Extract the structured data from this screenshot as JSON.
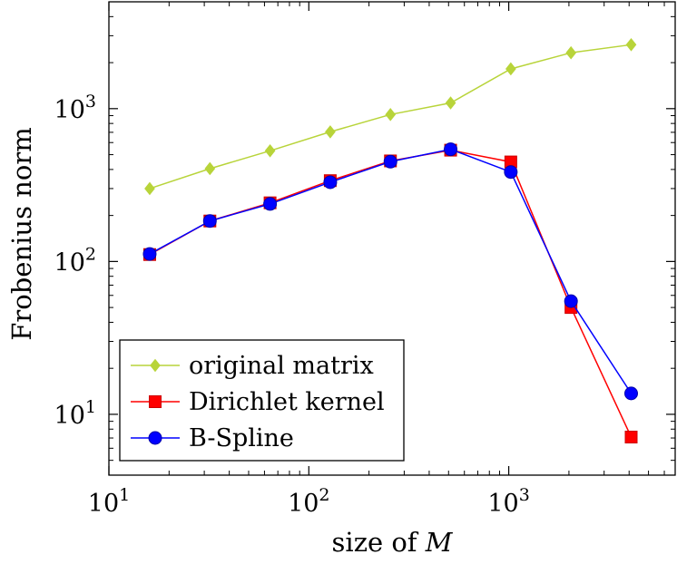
{
  "chart_data": {
    "type": "line",
    "xlabel_prefix": "size of ",
    "xlabel_var": "M",
    "ylabel": "Frobenius norm",
    "x_scale": "log",
    "y_scale": "log",
    "xlim": [
      10,
      6800
    ],
    "ylim": [
      4,
      5000
    ],
    "grid": false,
    "legend_position": "bottom-left",
    "x_ticks": [
      {
        "value": 10,
        "base": "10",
        "exp": "1"
      },
      {
        "value": 100,
        "base": "10",
        "exp": "2"
      },
      {
        "value": 1000,
        "base": "10",
        "exp": "3"
      }
    ],
    "y_ticks": [
      {
        "value": 10,
        "base": "10",
        "exp": "1"
      },
      {
        "value": 100,
        "base": "10",
        "exp": "2"
      },
      {
        "value": 1000,
        "base": "10",
        "exp": "3"
      }
    ],
    "x": [
      16,
      32,
      64,
      128,
      256,
      512,
      1024,
      2048,
      4096
    ],
    "series": [
      {
        "name": "original matrix",
        "color": "#b8d43a",
        "marker": "diamond",
        "values": [
          300,
          405,
          530,
          705,
          915,
          1090,
          1820,
          2320,
          2620
        ]
      },
      {
        "name": "Dirichlet kernel",
        "color": "#ff0000",
        "marker": "square",
        "values": [
          111,
          184,
          242,
          338,
          455,
          535,
          448,
          50,
          7.1
        ]
      },
      {
        "name": "B-Spline",
        "color": "#0000ff",
        "marker": "circle",
        "values": [
          112,
          184,
          238,
          330,
          450,
          542,
          385,
          55,
          13.7
        ]
      }
    ]
  }
}
